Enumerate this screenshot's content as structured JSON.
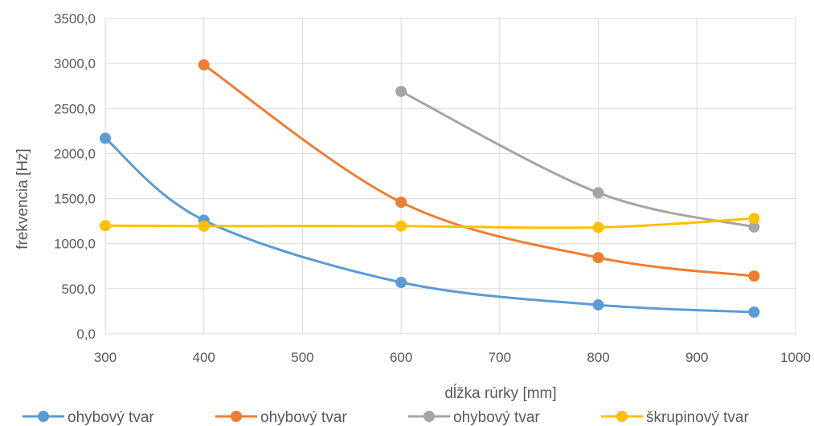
{
  "chart_data": {
    "type": "line",
    "title": "",
    "xlabel": "dĺžka rúrky [mm]",
    "ylabel": "frekvencia [Hz]",
    "xlim": [
      300,
      1000
    ],
    "ylim": [
      0,
      3500
    ],
    "x_ticks": [
      300,
      400,
      500,
      600,
      700,
      800,
      900,
      1000
    ],
    "y_ticks": [
      0,
      500,
      1000,
      1500,
      2000,
      2500,
      3000,
      3500
    ],
    "y_tick_labels": [
      "0,0",
      "500,0",
      "1000,0",
      "1500,0",
      "2000,0",
      "2500,0",
      "3000,0",
      "3500,0"
    ],
    "grid": true,
    "smooth": true,
    "legend_position": "bottom",
    "series": [
      {
        "name": "ohybový tvar",
        "color": "#5b9bd5",
        "points": [
          [
            300,
            2170
          ],
          [
            400,
            1260
          ],
          [
            600,
            570
          ],
          [
            800,
            320
          ],
          [
            958,
            240
          ]
        ]
      },
      {
        "name": "ohybový tvar",
        "color": "#ed7d31",
        "points": [
          [
            400,
            2985
          ],
          [
            600,
            1460
          ],
          [
            800,
            845
          ],
          [
            958,
            640
          ]
        ]
      },
      {
        "name": "ohybový tvar",
        "color": "#a5a5a5",
        "points": [
          [
            600,
            2690
          ],
          [
            800,
            1565
          ],
          [
            958,
            1185
          ]
        ]
      },
      {
        "name": "škrupinový tvar",
        "color": "#ffc000",
        "points": [
          [
            300,
            1200
          ],
          [
            400,
            1195
          ],
          [
            600,
            1195
          ],
          [
            800,
            1180
          ],
          [
            958,
            1280
          ]
        ]
      }
    ]
  }
}
